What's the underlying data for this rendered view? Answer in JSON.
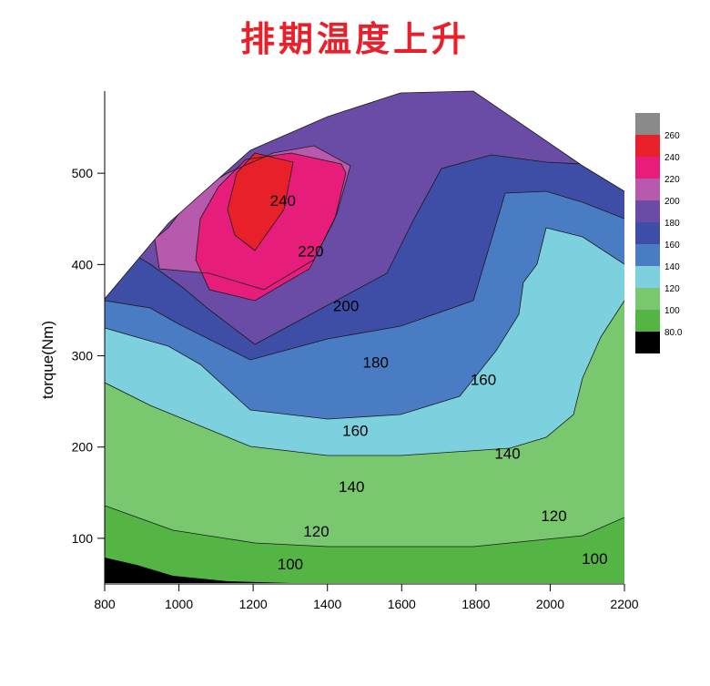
{
  "chart_data": {
    "type": "contour",
    "title": "排期温度上升",
    "xlabel": "",
    "ylabel": "torque(Nm)",
    "xlim": [
      800,
      2200
    ],
    "ylim": [
      50,
      590
    ],
    "x_ticks": [
      "800",
      "1000",
      "1200",
      "1400",
      "1600",
      "1800",
      "2000",
      "2200"
    ],
    "y_ticks": [
      "100",
      "200",
      "300",
      "400",
      "500"
    ],
    "legend": {
      "placement": "right",
      "levels": [
        "80.0",
        "100",
        "120",
        "140",
        "160",
        "180",
        "200",
        "220",
        "240",
        "260"
      ],
      "colors": [
        "#000000",
        "#55b544",
        "#79c86f",
        "#7dd1de",
        "#4a7cc4",
        "#3e4ea6",
        "#6a4ba6",
        "#b75aae",
        "#e61d7b",
        "#e8202a",
        "#8a8a8a"
      ]
    },
    "contour_labels": [
      {
        "text": "240",
        "x": 1280,
        "y": 470
      },
      {
        "text": "220",
        "x": 1355,
        "y": 415
      },
      {
        "text": "200",
        "x": 1450,
        "y": 355
      },
      {
        "text": "180",
        "x": 1530,
        "y": 293
      },
      {
        "text": "160",
        "x": 1820,
        "y": 274
      },
      {
        "text": "160",
        "x": 1475,
        "y": 218
      },
      {
        "text": "140",
        "x": 1885,
        "y": 193
      },
      {
        "text": "140",
        "x": 1465,
        "y": 157
      },
      {
        "text": "120",
        "x": 1370,
        "y": 108
      },
      {
        "text": "120",
        "x": 2010,
        "y": 125
      },
      {
        "text": "100",
        "x": 1300,
        "y": 72
      },
      {
        "text": "100",
        "x": 2120,
        "y": 78
      }
    ]
  }
}
